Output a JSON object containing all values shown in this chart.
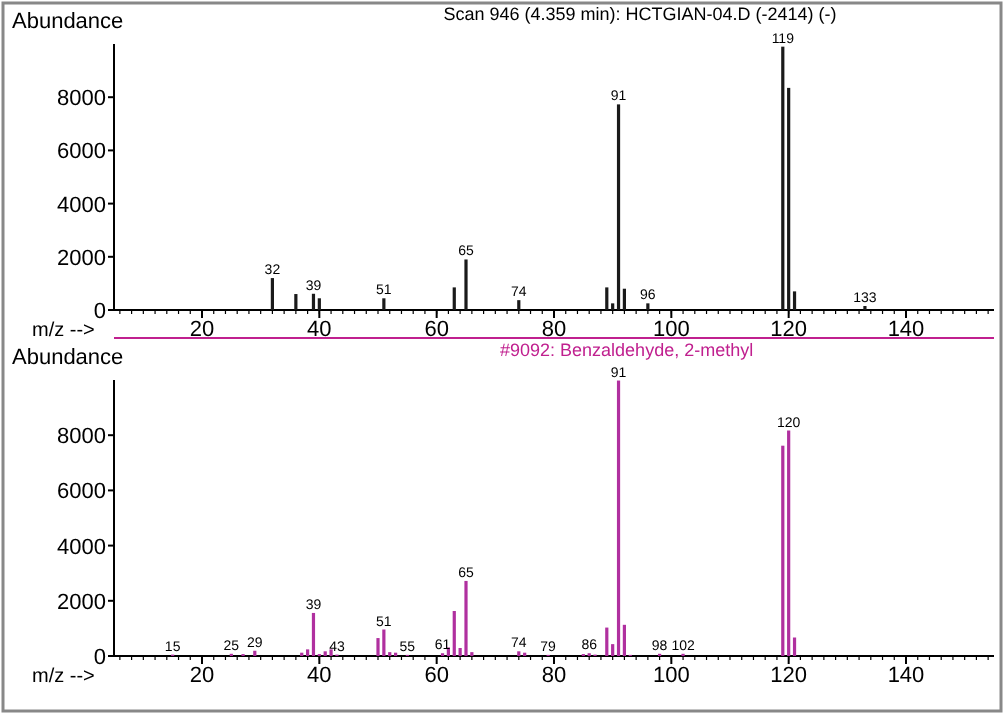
{
  "chart_data": [
    {
      "type": "bar",
      "title": "Scan 946 (4.359 min): HCTGIAN-04.D (-2414) (-)",
      "xlabel": "m/z -->",
      "ylabel": "Abundance",
      "color": "#1a1a1a",
      "x": [
        32,
        36,
        39,
        40,
        51,
        63,
        65,
        74,
        89,
        90,
        91,
        92,
        96,
        119,
        120,
        121,
        133
      ],
      "values": [
        1200,
        600,
        610,
        440,
        440,
        850,
        1900,
        370,
        850,
        250,
        7730,
        800,
        250,
        9900,
        8350,
        700,
        150
      ],
      "xlim": [
        5,
        155
      ],
      "xticks": [
        20,
        40,
        60,
        80,
        100,
        120,
        140
      ],
      "ylim": [
        0,
        10000
      ],
      "yticks": [
        0,
        2000,
        4000,
        6000,
        8000
      ],
      "annotations": [
        {
          "text": "32",
          "x": 32,
          "y": 1200
        },
        {
          "text": "39",
          "x": 39,
          "y": 610
        },
        {
          "text": "51",
          "x": 51,
          "y": 440
        },
        {
          "text": "65",
          "x": 65,
          "y": 1900
        },
        {
          "text": "74",
          "x": 74,
          "y": 370
        },
        {
          "text": "91",
          "x": 91,
          "y": 7730
        },
        {
          "text": "96",
          "x": 96,
          "y": 250
        },
        {
          "text": "119",
          "x": 119,
          "y": 9900
        },
        {
          "text": "133",
          "x": 133,
          "y": 150
        }
      ]
    },
    {
      "type": "bar",
      "title": "#9092: Benzaldehyde, 2-methyl",
      "xlabel": "m/z -->",
      "ylabel": "Abundance",
      "color": "#b0309f",
      "x": [
        15,
        25,
        27,
        29,
        37,
        38,
        39,
        40,
        41,
        42,
        43,
        50,
        51,
        52,
        53,
        55,
        61,
        62,
        63,
        64,
        65,
        66,
        74,
        75,
        79,
        85,
        86,
        87,
        89,
        90,
        91,
        92,
        93,
        98,
        102,
        119,
        120,
        121
      ],
      "values": [
        50,
        80,
        70,
        190,
        120,
        240,
        1560,
        70,
        170,
        240,
        50,
        650,
        960,
        140,
        120,
        40,
        100,
        310,
        1630,
        290,
        2720,
        140,
        170,
        120,
        40,
        70,
        100,
        50,
        1030,
        430,
        9980,
        1130,
        40,
        80,
        80,
        7620,
        8170,
        670
      ],
      "xlim": [
        5,
        155
      ],
      "xticks": [
        20,
        40,
        60,
        80,
        100,
        120,
        140
      ],
      "ylim": [
        0,
        10000
      ],
      "yticks": [
        0,
        2000,
        4000,
        6000,
        8000
      ],
      "annotations": [
        {
          "text": "15",
          "x": 15,
          "y": 50
        },
        {
          "text": "25",
          "x": 25,
          "y": 80
        },
        {
          "text": "29",
          "x": 29,
          "y": 190
        },
        {
          "text": "39",
          "x": 39,
          "y": 1560
        },
        {
          "text": "43",
          "x": 43,
          "y": 50
        },
        {
          "text": "51",
          "x": 51,
          "y": 960
        },
        {
          "text": "55",
          "x": 55,
          "y": 40
        },
        {
          "text": "61",
          "x": 61,
          "y": 100
        },
        {
          "text": "65",
          "x": 65,
          "y": 2720
        },
        {
          "text": "74",
          "x": 74,
          "y": 170
        },
        {
          "text": "79",
          "x": 79,
          "y": 40
        },
        {
          "text": "86",
          "x": 86,
          "y": 100
        },
        {
          "text": "91",
          "x": 91,
          "y": 9980
        },
        {
          "text": "98",
          "x": 98,
          "y": 80
        },
        {
          "text": "102",
          "x": 102,
          "y": 80
        },
        {
          "text": "120",
          "x": 120,
          "y": 8170
        }
      ]
    }
  ]
}
